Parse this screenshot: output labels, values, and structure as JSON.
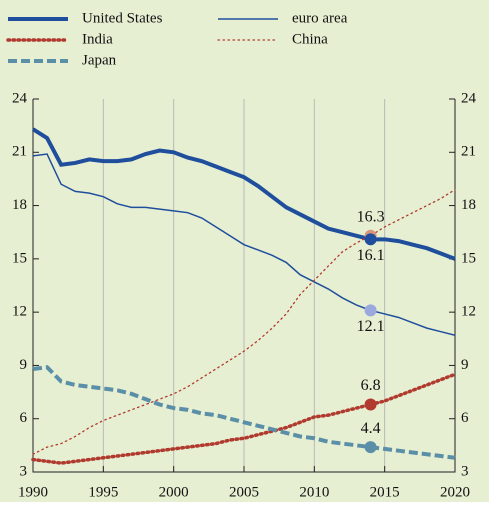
{
  "chart_data": {
    "type": "line",
    "x": [
      1990,
      1991,
      1992,
      1993,
      1994,
      1995,
      1996,
      1997,
      1998,
      1999,
      2000,
      2001,
      2002,
      2003,
      2004,
      2005,
      2006,
      2007,
      2008,
      2009,
      2010,
      2011,
      2012,
      2013,
      2014,
      2015,
      2016,
      2017,
      2018,
      2019,
      2020
    ],
    "series": [
      {
        "name": "United States",
        "color": "#1f4e9c",
        "style": "solid",
        "width": 4,
        "values": [
          22.3,
          21.8,
          20.3,
          20.4,
          20.6,
          20.5,
          20.5,
          20.6,
          20.9,
          21.1,
          21.0,
          20.7,
          20.5,
          20.2,
          19.9,
          19.6,
          19.1,
          18.5,
          17.9,
          17.5,
          17.1,
          16.7,
          16.5,
          16.3,
          16.1,
          16.1,
          16.0,
          15.8,
          15.6,
          15.3,
          15.0
        ]
      },
      {
        "name": "India",
        "color": "#b03a2e",
        "style": "dotted",
        "width": 3.5,
        "values": [
          3.7,
          3.6,
          3.5,
          3.6,
          3.7,
          3.8,
          3.9,
          4.0,
          4.1,
          4.2,
          4.3,
          4.4,
          4.5,
          4.6,
          4.8,
          4.9,
          5.1,
          5.3,
          5.5,
          5.8,
          6.1,
          6.2,
          6.4,
          6.6,
          6.8,
          7.0,
          7.3,
          7.6,
          7.9,
          8.2,
          8.5
        ]
      },
      {
        "name": "Japan",
        "color": "#5b8fa8",
        "style": "dashed",
        "width": 4,
        "values": [
          8.8,
          8.9,
          8.1,
          7.9,
          7.8,
          7.7,
          7.6,
          7.4,
          7.1,
          6.8,
          6.6,
          6.5,
          6.3,
          6.2,
          6.0,
          5.8,
          5.6,
          5.4,
          5.2,
          5.0,
          4.9,
          4.7,
          4.6,
          4.5,
          4.4,
          4.3,
          4.2,
          4.1,
          4.0,
          3.9,
          3.8
        ]
      },
      {
        "name": "euro area",
        "color": "#1f4e9c",
        "style": "solid",
        "width": 1.5,
        "values": [
          20.8,
          20.9,
          19.2,
          18.8,
          18.7,
          18.5,
          18.1,
          17.9,
          17.9,
          17.8,
          17.7,
          17.6,
          17.3,
          16.8,
          16.3,
          15.8,
          15.5,
          15.2,
          14.8,
          14.1,
          13.7,
          13.3,
          12.8,
          12.4,
          12.1,
          11.9,
          11.7,
          11.4,
          11.1,
          10.9,
          10.7
        ]
      },
      {
        "name": "China",
        "color": "#b03a2e",
        "style": "dotted",
        "width": 1.3,
        "values": [
          4.0,
          4.4,
          4.6,
          5.0,
          5.5,
          5.9,
          6.2,
          6.5,
          6.8,
          7.1,
          7.4,
          7.8,
          8.3,
          8.8,
          9.3,
          9.8,
          10.4,
          11.1,
          11.9,
          13.0,
          13.8,
          14.6,
          15.4,
          15.9,
          16.3,
          16.8,
          17.2,
          17.6,
          18.0,
          18.4,
          18.9
        ]
      }
    ],
    "annotations": [
      {
        "x": 2014,
        "y": 16.3,
        "color": "#d9967a"
      },
      {
        "x": 2014,
        "y": 16.1,
        "color": "#1f4e9c"
      },
      {
        "x": 2014,
        "y": 12.1,
        "color": "#9aa8dd"
      },
      {
        "x": 2014,
        "y": 6.8,
        "color": "#b03a2e"
      },
      {
        "x": 2014,
        "y": 4.4,
        "color": "#5b8fa8"
      }
    ],
    "xlim": [
      1990,
      2020
    ],
    "xticks": [
      1990,
      1995,
      2000,
      2005,
      2010,
      2015,
      2020
    ],
    "ylim": [
      3,
      24
    ],
    "yticks": [
      3,
      6,
      9,
      12,
      15,
      18,
      21,
      24
    ],
    "y2lim": [
      3,
      24
    ],
    "y2ticks": [
      3,
      6,
      9,
      12,
      15,
      18,
      21,
      24
    ],
    "grid": true,
    "background": "#e7efd3"
  }
}
